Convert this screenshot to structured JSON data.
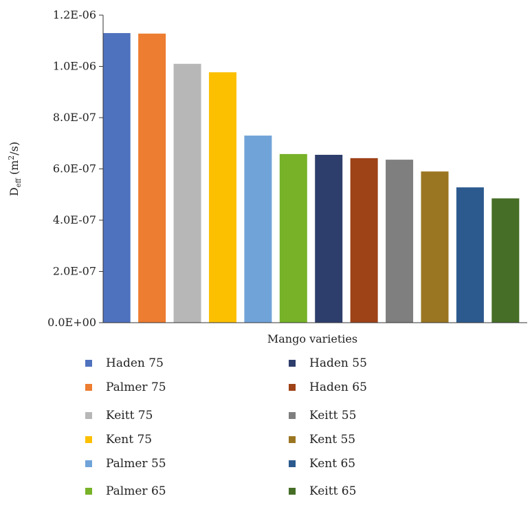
{
  "chart_data": {
    "type": "bar",
    "xlabel": "Mango varieties",
    "ylabel": {
      "main": "D",
      "sub": "eff",
      "unit_prefix": " (m",
      "unit_sup": "2",
      "unit_suffix": "/s)"
    },
    "ylim": [
      0,
      1.2e-06
    ],
    "yticks": [
      0,
      2e-07,
      4e-07,
      6e-07,
      8e-07,
      1e-06,
      1.2e-06
    ],
    "ytick_labels": [
      "0.0E+00",
      "2.0E-07",
      "4.0E-07",
      "6.0E-07",
      "8.0E-07",
      "1.0E-06",
      "1.2E-06"
    ],
    "grid": false,
    "legend_position": "bottom",
    "categories": [
      "Haden 75",
      "Palmer 75",
      "Keitt 75",
      "Kent 75",
      "Palmer 55",
      "Palmer 65",
      "Haden 55",
      "Haden 65",
      "Keitt 55",
      "Kent 55",
      "Kent 65",
      "Keitt 65"
    ],
    "values": [
      1.13e-06,
      1.128e-06,
      1.01e-06,
      9.77e-07,
      7.3e-07,
      6.58e-07,
      6.55e-07,
      6.42e-07,
      6.36e-07,
      5.9e-07,
      5.28e-07,
      4.85e-07
    ],
    "colors": [
      "#4f72be",
      "#ed7d31",
      "#b7b7b7",
      "#fcc000",
      "#70a3d8",
      "#77b228",
      "#2e3e6c",
      "#9e4217",
      "#7f7f7f",
      "#9b7622",
      "#2c5a8e",
      "#466e26"
    ]
  }
}
